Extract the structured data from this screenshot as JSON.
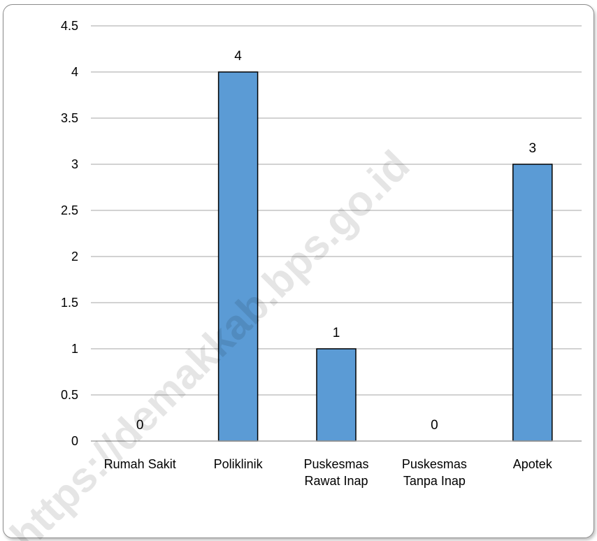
{
  "chart_data": {
    "type": "bar",
    "categories": [
      [
        "Rumah Sakit"
      ],
      [
        "Poliklinik"
      ],
      [
        "Puskesmas",
        "Rawat Inap"
      ],
      [
        "Puskesmas",
        "Tanpa Inap"
      ],
      [
        "Apotek"
      ]
    ],
    "values": [
      0,
      4,
      1,
      0,
      3
    ],
    "data_labels": [
      "0",
      "4",
      "1",
      "0",
      "3"
    ],
    "ylim": [
      0,
      4.5
    ],
    "yticks": [
      0,
      0.5,
      1,
      1.5,
      2,
      2.5,
      3,
      3.5,
      4,
      4.5
    ],
    "ytick_labels": [
      "0",
      "0.5",
      "1",
      "1.5",
      "2",
      "2.5",
      "3",
      "3.5",
      "4",
      "4.5"
    ],
    "grid": true,
    "bar_color": "#5b9bd5",
    "bar_edge_color": "#000000",
    "title": "",
    "xlabel": "",
    "ylabel": ""
  },
  "watermark": "https://demakkab.bps.go.id"
}
